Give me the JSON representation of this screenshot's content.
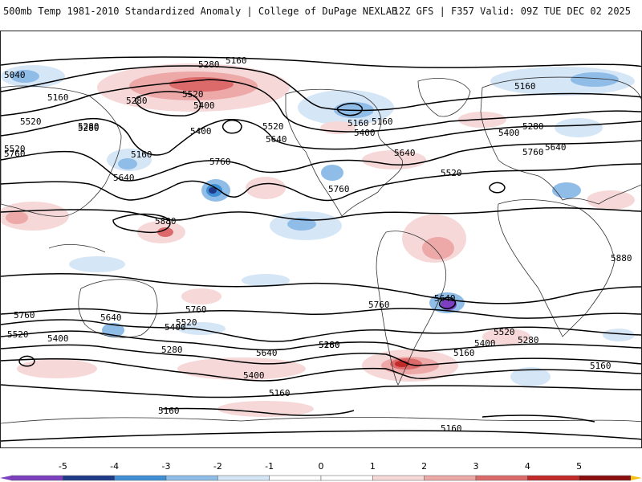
{
  "header": {
    "left_title": "500mb Temp 1981-2010 Standardized Anomaly | College of DuPage NEXLAB",
    "right_title": "12Z GFS | F357 Valid: 09Z TUE DEC 02 2025"
  },
  "map": {
    "field": "500mb temperature standardized anomaly",
    "contour_variable": "500mb geopotential height (dam)",
    "contour_labels": [
      "5040",
      "5160",
      "5280",
      "5520",
      "5400",
      "5160",
      "5280",
      "5160",
      "5520",
      "5280",
      "5400",
      "5160",
      "5640",
      "5760",
      "5640",
      "5520",
      "5400",
      "5160",
      "5640",
      "5760",
      "5880",
      "5760",
      "5520",
      "5400",
      "5280",
      "5640",
      "5160",
      "5520",
      "5280",
      "5760",
      "5880",
      "5760",
      "5640",
      "5640",
      "5520",
      "5400",
      "5760",
      "5400",
      "5280",
      "5520",
      "5640",
      "5280",
      "5160",
      "5400",
      "5160",
      "5520",
      "5400",
      "5280",
      "5160",
      "5160",
      "5160",
      "5760",
      "5160"
    ]
  },
  "colors": {
    "neg5": "#7b3fbf",
    "neg4": "#203a8a",
    "neg3": "#3f8fd6",
    "neg2": "#8fbde8",
    "neg1": "#d5e6f6",
    "zero": "#ffffff",
    "pos1": "#f6d8d8",
    "pos2": "#eda8a8",
    "pos3": "#dd6a6a",
    "pos4": "#c22a2a",
    "pos5": "#8b0f0f",
    "over": "#f2c21a"
  },
  "colorbar": {
    "ticks": [
      "-5",
      "-4",
      "-3",
      "-2",
      "-1",
      "0",
      "1",
      "2",
      "3",
      "4",
      "5"
    ]
  }
}
